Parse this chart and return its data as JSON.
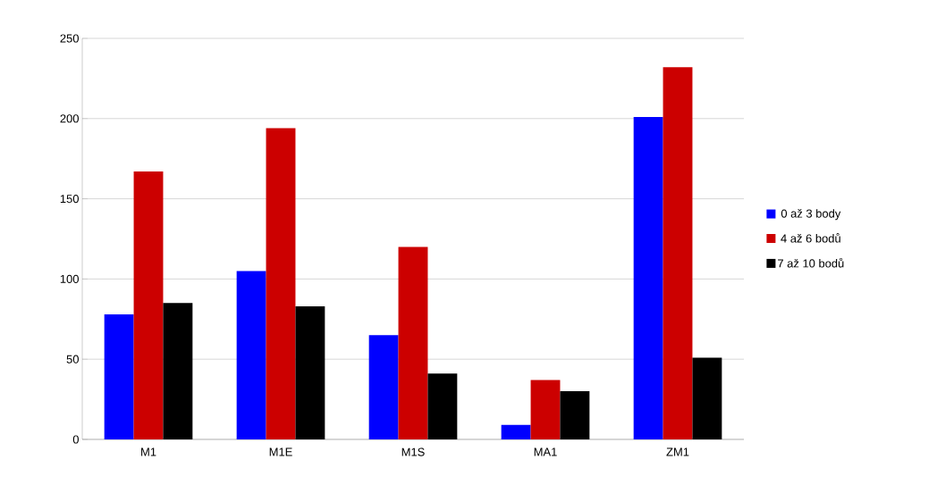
{
  "chart_data": {
    "type": "bar",
    "categories": [
      "M1",
      "M1E",
      "M1S",
      "MA1",
      "ZM1"
    ],
    "series": [
      {
        "name": "0 až 3 body",
        "color": "#0000ff",
        "values": [
          78,
          105,
          65,
          9,
          201
        ]
      },
      {
        "name": "4 až 6 bodů",
        "color": "#cc0000",
        "values": [
          167,
          194,
          120,
          37,
          232
        ]
      },
      {
        "name": "7 až 10 bodů",
        "color": "#000000",
        "values": [
          85,
          83,
          41,
          30,
          51
        ]
      }
    ],
    "ylim": [
      0,
      250
    ],
    "yticks": [
      0,
      50,
      100,
      150,
      200,
      250
    ],
    "grid": "y",
    "legend": "right"
  }
}
